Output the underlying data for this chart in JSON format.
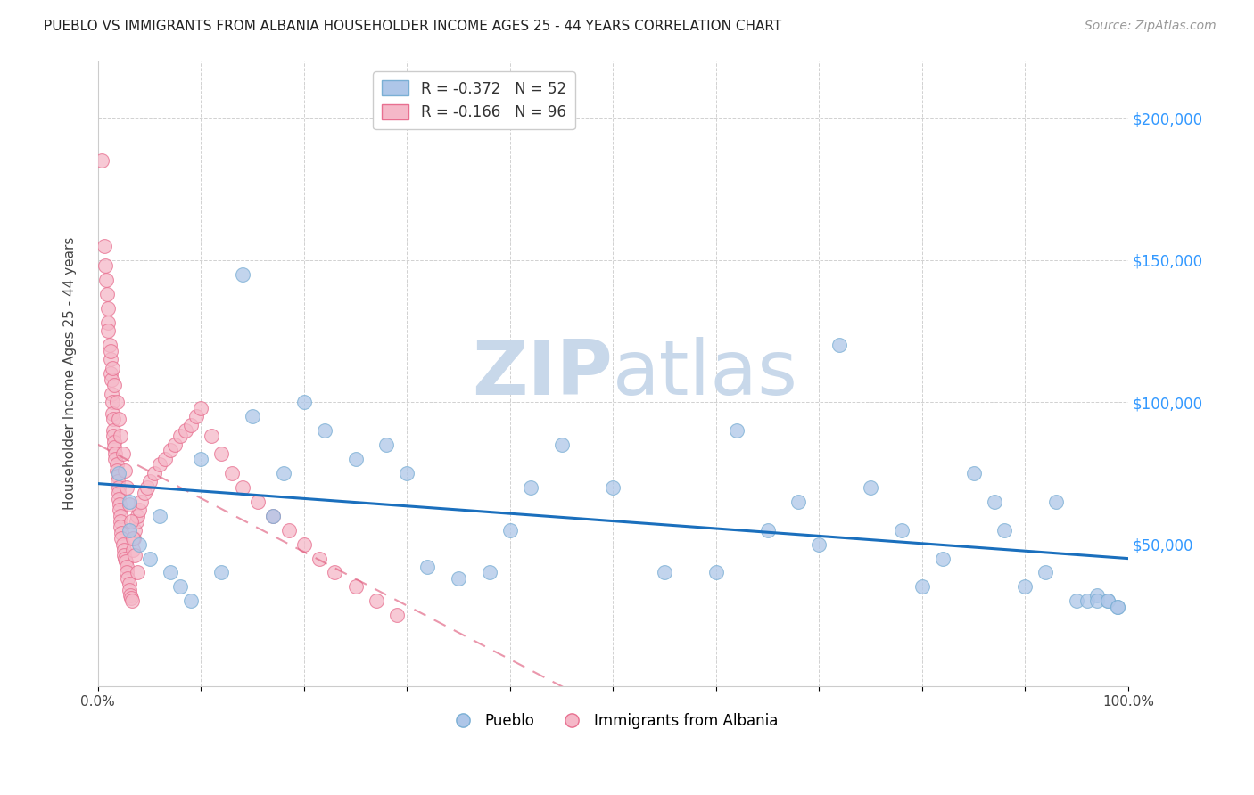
{
  "title": "PUEBLO VS IMMIGRANTS FROM ALBANIA HOUSEHOLDER INCOME AGES 25 - 44 YEARS CORRELATION CHART",
  "source": "Source: ZipAtlas.com",
  "ylabel": "Householder Income Ages 25 - 44 years",
  "xlim": [
    0.0,
    1.0
  ],
  "ylim": [
    0,
    220000
  ],
  "yticks": [
    0,
    50000,
    100000,
    150000,
    200000
  ],
  "ytick_labels": [
    "",
    "$50,000",
    "$100,000",
    "$150,000",
    "$200,000"
  ],
  "xticks": [
    0.0,
    0.1,
    0.2,
    0.3,
    0.4,
    0.5,
    0.6,
    0.7,
    0.8,
    0.9,
    1.0
  ],
  "xtick_labels": [
    "0.0%",
    "",
    "",
    "",
    "",
    "",
    "",
    "",
    "",
    "",
    "100.0%"
  ],
  "legend1_label": "R = -0.372   N = 52",
  "legend2_label": "R = -0.166   N = 96",
  "pueblo_color": "#aec6e8",
  "albania_color": "#f5b8c8",
  "pueblo_edge": "#7aafd4",
  "albania_edge": "#e87090",
  "regression_pueblo_color": "#1a6fbd",
  "regression_albania_color": "#e06080",
  "watermark_zip": "ZIP",
  "watermark_atlas": "atlas",
  "watermark_color": "#c8d8ea",
  "pueblo_x": [
    0.02,
    0.03,
    0.03,
    0.04,
    0.05,
    0.06,
    0.07,
    0.08,
    0.09,
    0.1,
    0.12,
    0.14,
    0.15,
    0.17,
    0.18,
    0.2,
    0.22,
    0.25,
    0.28,
    0.3,
    0.32,
    0.35,
    0.38,
    0.4,
    0.42,
    0.45,
    0.5,
    0.55,
    0.6,
    0.62,
    0.65,
    0.68,
    0.7,
    0.72,
    0.75,
    0.78,
    0.8,
    0.82,
    0.85,
    0.87,
    0.88,
    0.9,
    0.92,
    0.93,
    0.95,
    0.96,
    0.97,
    0.97,
    0.98,
    0.98,
    0.99,
    0.99
  ],
  "pueblo_y": [
    75000,
    65000,
    55000,
    50000,
    45000,
    60000,
    40000,
    35000,
    30000,
    80000,
    40000,
    145000,
    95000,
    60000,
    75000,
    100000,
    90000,
    80000,
    85000,
    75000,
    42000,
    38000,
    40000,
    55000,
    70000,
    85000,
    70000,
    40000,
    40000,
    90000,
    55000,
    65000,
    50000,
    120000,
    70000,
    55000,
    35000,
    45000,
    75000,
    65000,
    55000,
    35000,
    40000,
    65000,
    30000,
    30000,
    32000,
    30000,
    30000,
    30000,
    28000,
    28000
  ],
  "albania_x": [
    0.004,
    0.006,
    0.007,
    0.008,
    0.009,
    0.01,
    0.01,
    0.011,
    0.012,
    0.012,
    0.013,
    0.013,
    0.014,
    0.014,
    0.015,
    0.015,
    0.015,
    0.016,
    0.016,
    0.017,
    0.017,
    0.018,
    0.018,
    0.019,
    0.019,
    0.02,
    0.02,
    0.02,
    0.021,
    0.021,
    0.022,
    0.022,
    0.022,
    0.023,
    0.023,
    0.024,
    0.025,
    0.025,
    0.026,
    0.027,
    0.028,
    0.028,
    0.029,
    0.03,
    0.03,
    0.031,
    0.032,
    0.033,
    0.034,
    0.035,
    0.036,
    0.037,
    0.038,
    0.04,
    0.042,
    0.045,
    0.048,
    0.05,
    0.055,
    0.06,
    0.065,
    0.07,
    0.075,
    0.08,
    0.085,
    0.09,
    0.095,
    0.1,
    0.11,
    0.12,
    0.13,
    0.14,
    0.155,
    0.17,
    0.185,
    0.2,
    0.215,
    0.23,
    0.25,
    0.27,
    0.29,
    0.01,
    0.012,
    0.014,
    0.016,
    0.018,
    0.02,
    0.022,
    0.024,
    0.026,
    0.028,
    0.03,
    0.032,
    0.034,
    0.036,
    0.038
  ],
  "albania_y": [
    185000,
    155000,
    148000,
    143000,
    138000,
    133000,
    128000,
    120000,
    115000,
    110000,
    108000,
    103000,
    100000,
    96000,
    94000,
    90000,
    88000,
    86000,
    84000,
    82000,
    80000,
    78000,
    76000,
    74000,
    72000,
    70000,
    68000,
    66000,
    64000,
    62000,
    60000,
    58000,
    56000,
    54000,
    52000,
    50000,
    48000,
    46000,
    45000,
    44000,
    42000,
    40000,
    38000,
    36000,
    34000,
    32000,
    31000,
    30000,
    48000,
    52000,
    55000,
    58000,
    60000,
    62000,
    65000,
    68000,
    70000,
    72000,
    75000,
    78000,
    80000,
    83000,
    85000,
    88000,
    90000,
    92000,
    95000,
    98000,
    88000,
    82000,
    75000,
    70000,
    65000,
    60000,
    55000,
    50000,
    45000,
    40000,
    35000,
    30000,
    25000,
    125000,
    118000,
    112000,
    106000,
    100000,
    94000,
    88000,
    82000,
    76000,
    70000,
    64000,
    58000,
    52000,
    46000,
    40000
  ]
}
